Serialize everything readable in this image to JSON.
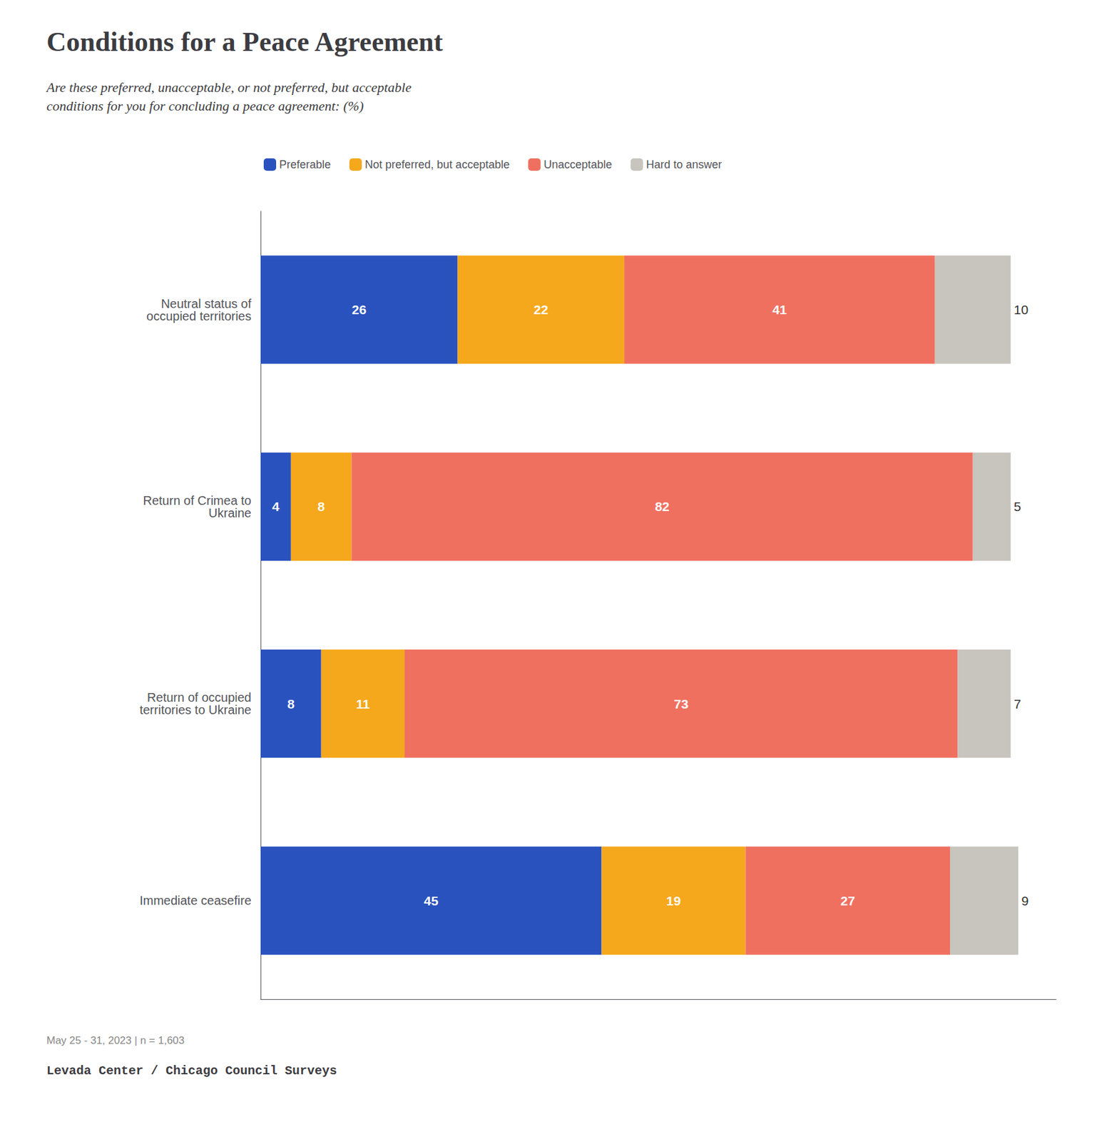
{
  "chart_data": {
    "type": "bar",
    "orientation": "horizontal",
    "stacked": true,
    "title": "Conditions for a Peace Agreement",
    "subtitle": "Are these preferred, unacceptable, or not preferred, but acceptable\nconditions for you for concluding a peace agreement: (%)",
    "footnote": "May 25 - 31, 2023 | n = 1,603",
    "source": "Levada Center / Chicago Council Surveys",
    "categories": [
      "Neutral status of\noccupied territories",
      "Return of Crimea to\nUkraine",
      "Return of occupied\nterritories to Ukraine",
      "Immediate ceasefire"
    ],
    "series": [
      {
        "name": "Preferable",
        "color": "#2a52be",
        "values": [
          26,
          4,
          8,
          45
        ]
      },
      {
        "name": "Not preferred, but acceptable",
        "color": "#f5a81c",
        "values": [
          22,
          8,
          11,
          19
        ]
      },
      {
        "name": "Unacceptable",
        "color": "#f07060",
        "values": [
          41,
          82,
          73,
          27
        ]
      },
      {
        "name": "Hard to answer",
        "color": "#c8c4be",
        "values": [
          10,
          5,
          7,
          9
        ]
      }
    ],
    "xlim": [
      0,
      105
    ],
    "data_labels": true,
    "tick_labels": "y",
    "grid": false,
    "legend": "top"
  }
}
